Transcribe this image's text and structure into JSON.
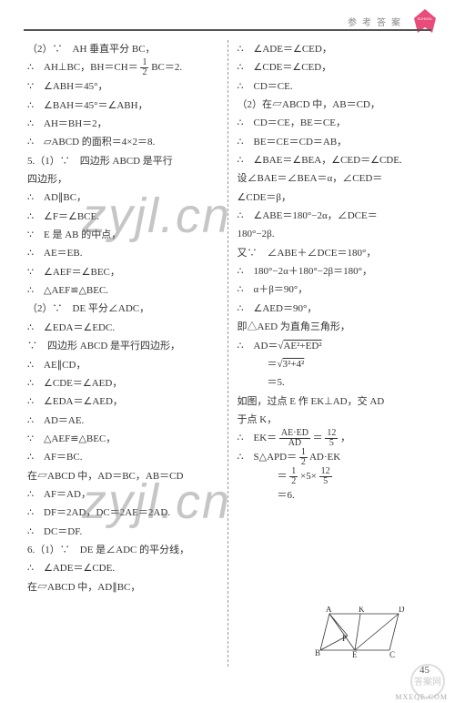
{
  "header": {
    "label": "参考答案",
    "icon_bg": "#e94b7a",
    "icon_text": "SCHOOL"
  },
  "page_number": "45",
  "watermark": {
    "text": "zyjl.cn",
    "color": "rgba(120,120,120,0.42)",
    "fontsize": 54
  },
  "corner": {
    "stamp_color": "#d9d9d9",
    "stamp_text": "答案网",
    "link": "MXEQE.COM"
  },
  "left_column": [
    "（2）∵　AH 垂直平分 BC，",
    "∴　AH⊥BC，BH＝CH＝ {FRAC:1:2} BC＝2.",
    "∵　∠ABH＝45°，",
    "∴　∠BAH＝45°＝∠ABH，",
    "∴　AH＝BH＝2，",
    "∴　▱ABCD 的面积＝4×2＝8.",
    "5.（1）∵　四边形 ABCD 是平行",
    "四边形，",
    "∴　AD∥BC，",
    "∴　∠F＝∠BCE.",
    "∵　E 是 AB 的中点，",
    "∴　AE＝EB.",
    "∵　∠AEF＝∠BEC，",
    "∴　△AEF≌△BEC.",
    "（2）∵　DE 平分∠ADC，",
    "∴　∠EDA＝∠EDC.",
    "∵　四边形 ABCD 是平行四边形，",
    "∴　AE∥CD，",
    "∴　∠CDE＝∠AED，",
    "∴　∠EDA＝∠AED，",
    "∴　AD＝AE.",
    "∵　△AEF≌△BEC，",
    "∴　AF＝BC.",
    "在▱ABCD 中，AD＝BC，AB＝CD",
    "∴　AF＝AD，",
    "∴　DF＝2AD，DC＝2AE＝2AD.",
    "∴　DC＝DF.",
    "6.（1）∵　DE 是∠ADC 的平分线，",
    "∴　∠ADE＝∠CDE.",
    "在▱ABCD 中，AD∥BC，"
  ],
  "right_column": [
    "∴　∠ADE＝∠CED，",
    "∴　∠CDE＝∠CED，",
    "∴　CD＝CE.",
    "（2）在▱ABCD 中，AB＝CD，",
    "∴　CD＝CE，BE＝CE，",
    "∴　BE＝CE＝CD＝AB，",
    "∴　∠BAE＝∠BEA，∠CED＝∠CDE.",
    "设∠BAE＝∠BEA＝α，∠CED＝",
    "∠CDE＝β，",
    "∴　∠ABE＝180°−2α，∠DCE＝",
    "180°−2β.",
    "又∵　∠ABE＋∠DCE＝180°，",
    "∴　180°−2α＋180°−2β＝180°，",
    "∴　α＋β＝90°，",
    "∴　∠AED＝90°，",
    "即△AED 为直角三角形，",
    "∴　AD＝√(AE²+ED²)",
    "　　　＝√(3²+4²)",
    "　　　＝5.",
    "如图，过点 E 作 EK⊥AD，交 AD",
    "于点 K，",
    "∴　EK＝ {FRAC:AE·ED:AD} ＝ {FRAC:12:5} ，",
    "∴　S△APD＝ {FRAC:1:2} AD·EK",
    "　　　　＝ {FRAC:1:2} ×5× {FRAC:12:5}",
    "　　　　＝6."
  ],
  "figure": {
    "points": {
      "A": "A",
      "K": "K",
      "D": "D",
      "B": "B",
      "E": "E",
      "C": "C",
      "P": "P"
    },
    "stroke": "#333333",
    "fontsize": 9
  }
}
